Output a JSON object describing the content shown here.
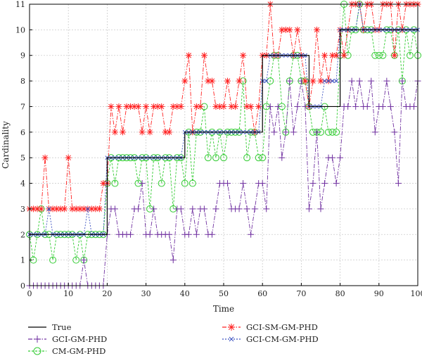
{
  "chart_data": {
    "type": "line",
    "title": "",
    "xlabel": "Time",
    "ylabel": "Cardinality",
    "xlim": [
      0,
      100
    ],
    "ylim": [
      0,
      11
    ],
    "xticks": [
      0,
      10,
      20,
      30,
      40,
      50,
      60,
      70,
      80,
      90,
      100
    ],
    "yticks": [
      0,
      1,
      2,
      3,
      4,
      5,
      6,
      7,
      8,
      9,
      10,
      11
    ],
    "grid": true,
    "legend_position": "bottom",
    "series": [
      {
        "name": "True",
        "color": "#000000",
        "marker": "none",
        "values": [
          2,
          2,
          2,
          2,
          2,
          2,
          2,
          2,
          2,
          2,
          2,
          2,
          2,
          2,
          2,
          2,
          2,
          2,
          2,
          2,
          5,
          5,
          5,
          5,
          5,
          5,
          5,
          5,
          5,
          5,
          5,
          5,
          5,
          5,
          5,
          5,
          5,
          5,
          5,
          5,
          6,
          6,
          6,
          6,
          6,
          6,
          6,
          6,
          6,
          6,
          6,
          6,
          6,
          6,
          6,
          6,
          6,
          6,
          6,
          6,
          9,
          9,
          9,
          9,
          9,
          9,
          9,
          9,
          9,
          9,
          9,
          9,
          7,
          7,
          7,
          7,
          7,
          7,
          7,
          7,
          10,
          10,
          10,
          10,
          10,
          10,
          10,
          10,
          10,
          10,
          10,
          10,
          10,
          10,
          10,
          10,
          10,
          10,
          10,
          10,
          10
        ]
      },
      {
        "name": "GCI-GM-PHD",
        "color": "#7030a0",
        "marker": "plus",
        "values": [
          0,
          0,
          0,
          0,
          0,
          0,
          0,
          0,
          0,
          0,
          0,
          0,
          0,
          0,
          1,
          0,
          0,
          0,
          0,
          0,
          2,
          3,
          3,
          2,
          2,
          2,
          2,
          3,
          3,
          4,
          2,
          2,
          3,
          2,
          2,
          2,
          2,
          1,
          3,
          3,
          2,
          2,
          3,
          2,
          3,
          3,
          2,
          2,
          3,
          4,
          4,
          4,
          3,
          3,
          3,
          4,
          3,
          2,
          3,
          4,
          4,
          3,
          7,
          6,
          7,
          5,
          6,
          8,
          6,
          7,
          8,
          7,
          3,
          4,
          6,
          3,
          4,
          5,
          5,
          4,
          5,
          7,
          7,
          8,
          7,
          8,
          7,
          7,
          8,
          6,
          7,
          7,
          8,
          7,
          6,
          4,
          8,
          7,
          7,
          7,
          8
        ]
      },
      {
        "name": "CM-GM-PHD",
        "color": "#33cc33",
        "marker": "circle",
        "values": [
          2,
          1,
          2,
          3,
          2,
          2,
          1,
          2,
          2,
          2,
          2,
          2,
          1,
          2,
          1,
          2,
          2,
          2,
          2,
          2,
          4,
          5,
          4,
          5,
          5,
          5,
          5,
          5,
          4,
          5,
          5,
          3,
          5,
          5,
          4,
          5,
          5,
          3,
          5,
          5,
          4,
          6,
          4,
          6,
          6,
          7,
          5,
          6,
          5,
          6,
          5,
          6,
          6,
          6,
          6,
          8,
          5,
          6,
          6,
          5,
          5,
          7,
          8,
          9,
          9,
          7,
          6,
          8,
          9,
          9,
          8,
          8,
          7,
          6,
          6,
          6,
          7,
          6,
          6,
          6,
          9,
          11,
          9,
          10,
          10,
          11,
          10,
          10,
          10,
          9,
          9,
          9,
          10,
          10,
          9,
          10,
          8,
          10,
          9,
          10,
          9
        ]
      },
      {
        "name": "GCI-SM-GM-PHD",
        "color": "#ff2020",
        "marker": "asterisk",
        "values": [
          3,
          3,
          3,
          3,
          5,
          3,
          3,
          3,
          3,
          3,
          5,
          3,
          3,
          3,
          3,
          3,
          3,
          3,
          3,
          4,
          4,
          7,
          6,
          7,
          6,
          7,
          7,
          7,
          7,
          6,
          7,
          6,
          7,
          7,
          7,
          6,
          6,
          7,
          7,
          7,
          8,
          9,
          6,
          7,
          7,
          9,
          8,
          8,
          7,
          7,
          7,
          8,
          7,
          7,
          8,
          9,
          7,
          7,
          6,
          7,
          9,
          9,
          11,
          9,
          9,
          10,
          10,
          10,
          9,
          10,
          9,
          8,
          7,
          8,
          10,
          8,
          9,
          8,
          9,
          9,
          10,
          9,
          10,
          11,
          11,
          11,
          10,
          11,
          11,
          10,
          10,
          11,
          11,
          11,
          9,
          11,
          10,
          11,
          11,
          11,
          11
        ]
      },
      {
        "name": "GCI-CM-GM-PHD",
        "color": "#3a50c0",
        "marker": "cross",
        "values": [
          2,
          2,
          2,
          2,
          2,
          3,
          2,
          2,
          2,
          2,
          2,
          2,
          2,
          2,
          2,
          3,
          2,
          2,
          2,
          2,
          5,
          5,
          5,
          5,
          5,
          5,
          5,
          5,
          5,
          5,
          5,
          5,
          5,
          5,
          5,
          5,
          5,
          5,
          5,
          5,
          6,
          6,
          6,
          6,
          6,
          6,
          6,
          6,
          6,
          6,
          6,
          6,
          6,
          6,
          6,
          6,
          6,
          6,
          6,
          6,
          8,
          8,
          9,
          9,
          9,
          9,
          9,
          9,
          9,
          9,
          9,
          9,
          7,
          7,
          7,
          7,
          8,
          8,
          8,
          8,
          10,
          10,
          10,
          10,
          10,
          11,
          10,
          10,
          10,
          10,
          10,
          10,
          10,
          10,
          10,
          10,
          10,
          10,
          10,
          10,
          10
        ]
      }
    ]
  }
}
